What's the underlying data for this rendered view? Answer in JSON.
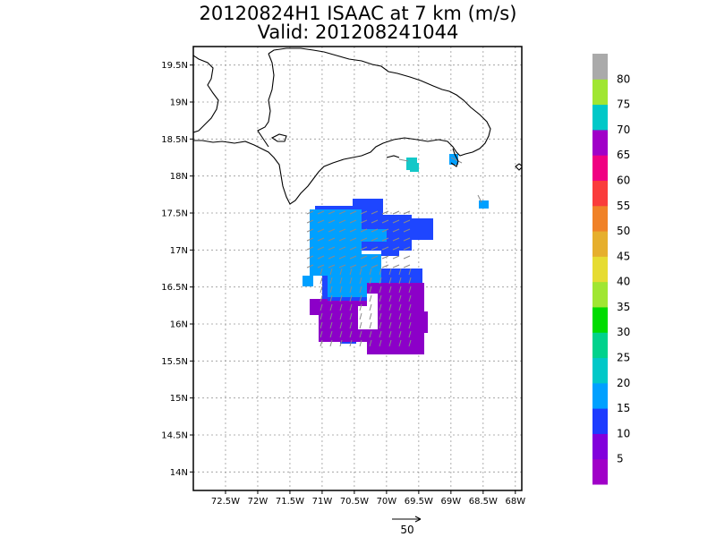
{
  "title_line1": "20120824H1 ISAAC at 7 km (m/s)",
  "title_line2": "Valid: 201208241044",
  "y_ticks": [
    "19.5N",
    "19N",
    "18.5N",
    "18N",
    "17.5N",
    "17N",
    "16.5N",
    "16N",
    "15.5N",
    "15N",
    "14.5N",
    "14N"
  ],
  "x_ticks": [
    "72.5W",
    "72W",
    "71.5W",
    "71W",
    "70.5W",
    "70W",
    "69.5W",
    "69W",
    "68.5W",
    "68W"
  ],
  "colorbar": {
    "labels": [
      "5",
      "10",
      "15",
      "20",
      "25",
      "30",
      "35",
      "40",
      "45",
      "50",
      "55",
      "60",
      "65",
      "70",
      "75",
      "80"
    ],
    "colors": [
      "#a000c8",
      "#8200dc",
      "#1e3cff",
      "#00a0ff",
      "#00c8c8",
      "#00d28c",
      "#00dc00",
      "#a0e632",
      "#e6dc32",
      "#e6af2d",
      "#f08228",
      "#fa3c3c",
      "#f00082",
      "#a000c8",
      "#00c8c8",
      "#a0e632",
      "#aaaaaa"
    ]
  },
  "reference_vector": {
    "label": "50"
  },
  "chart_data": {
    "type": "heatmap",
    "title": "20120824H1 ISAAC at 7 km (m/s)",
    "subtitle": "Valid: 201208241044",
    "xlim": [
      -73.0,
      -67.9
    ],
    "ylim": [
      13.75,
      19.75
    ],
    "regions": [
      {
        "name": "purple",
        "speed_class": "5-10",
        "lon_range": [
          -71.2,
          -69.5
        ],
        "lat_range": [
          15.6,
          16.5
        ]
      },
      {
        "name": "blue",
        "speed_class": "10-15",
        "lon_range": [
          -71.1,
          -69.5
        ],
        "lat_range": [
          16.3,
          17.6
        ]
      },
      {
        "name": "light-blue",
        "speed_class": "15-20",
        "lon_range": [
          -71.2,
          -70.2
        ],
        "lat_range": [
          16.5,
          17.5
        ]
      }
    ],
    "isolated_cells": [
      {
        "lon": -69.55,
        "lat": 18.1,
        "speed_class": "20-25"
      },
      {
        "lon": -68.9,
        "lat": 18.15,
        "speed_class": "15-20"
      },
      {
        "lon": -68.4,
        "lat": 17.6,
        "speed_class": "15-20"
      }
    ]
  }
}
